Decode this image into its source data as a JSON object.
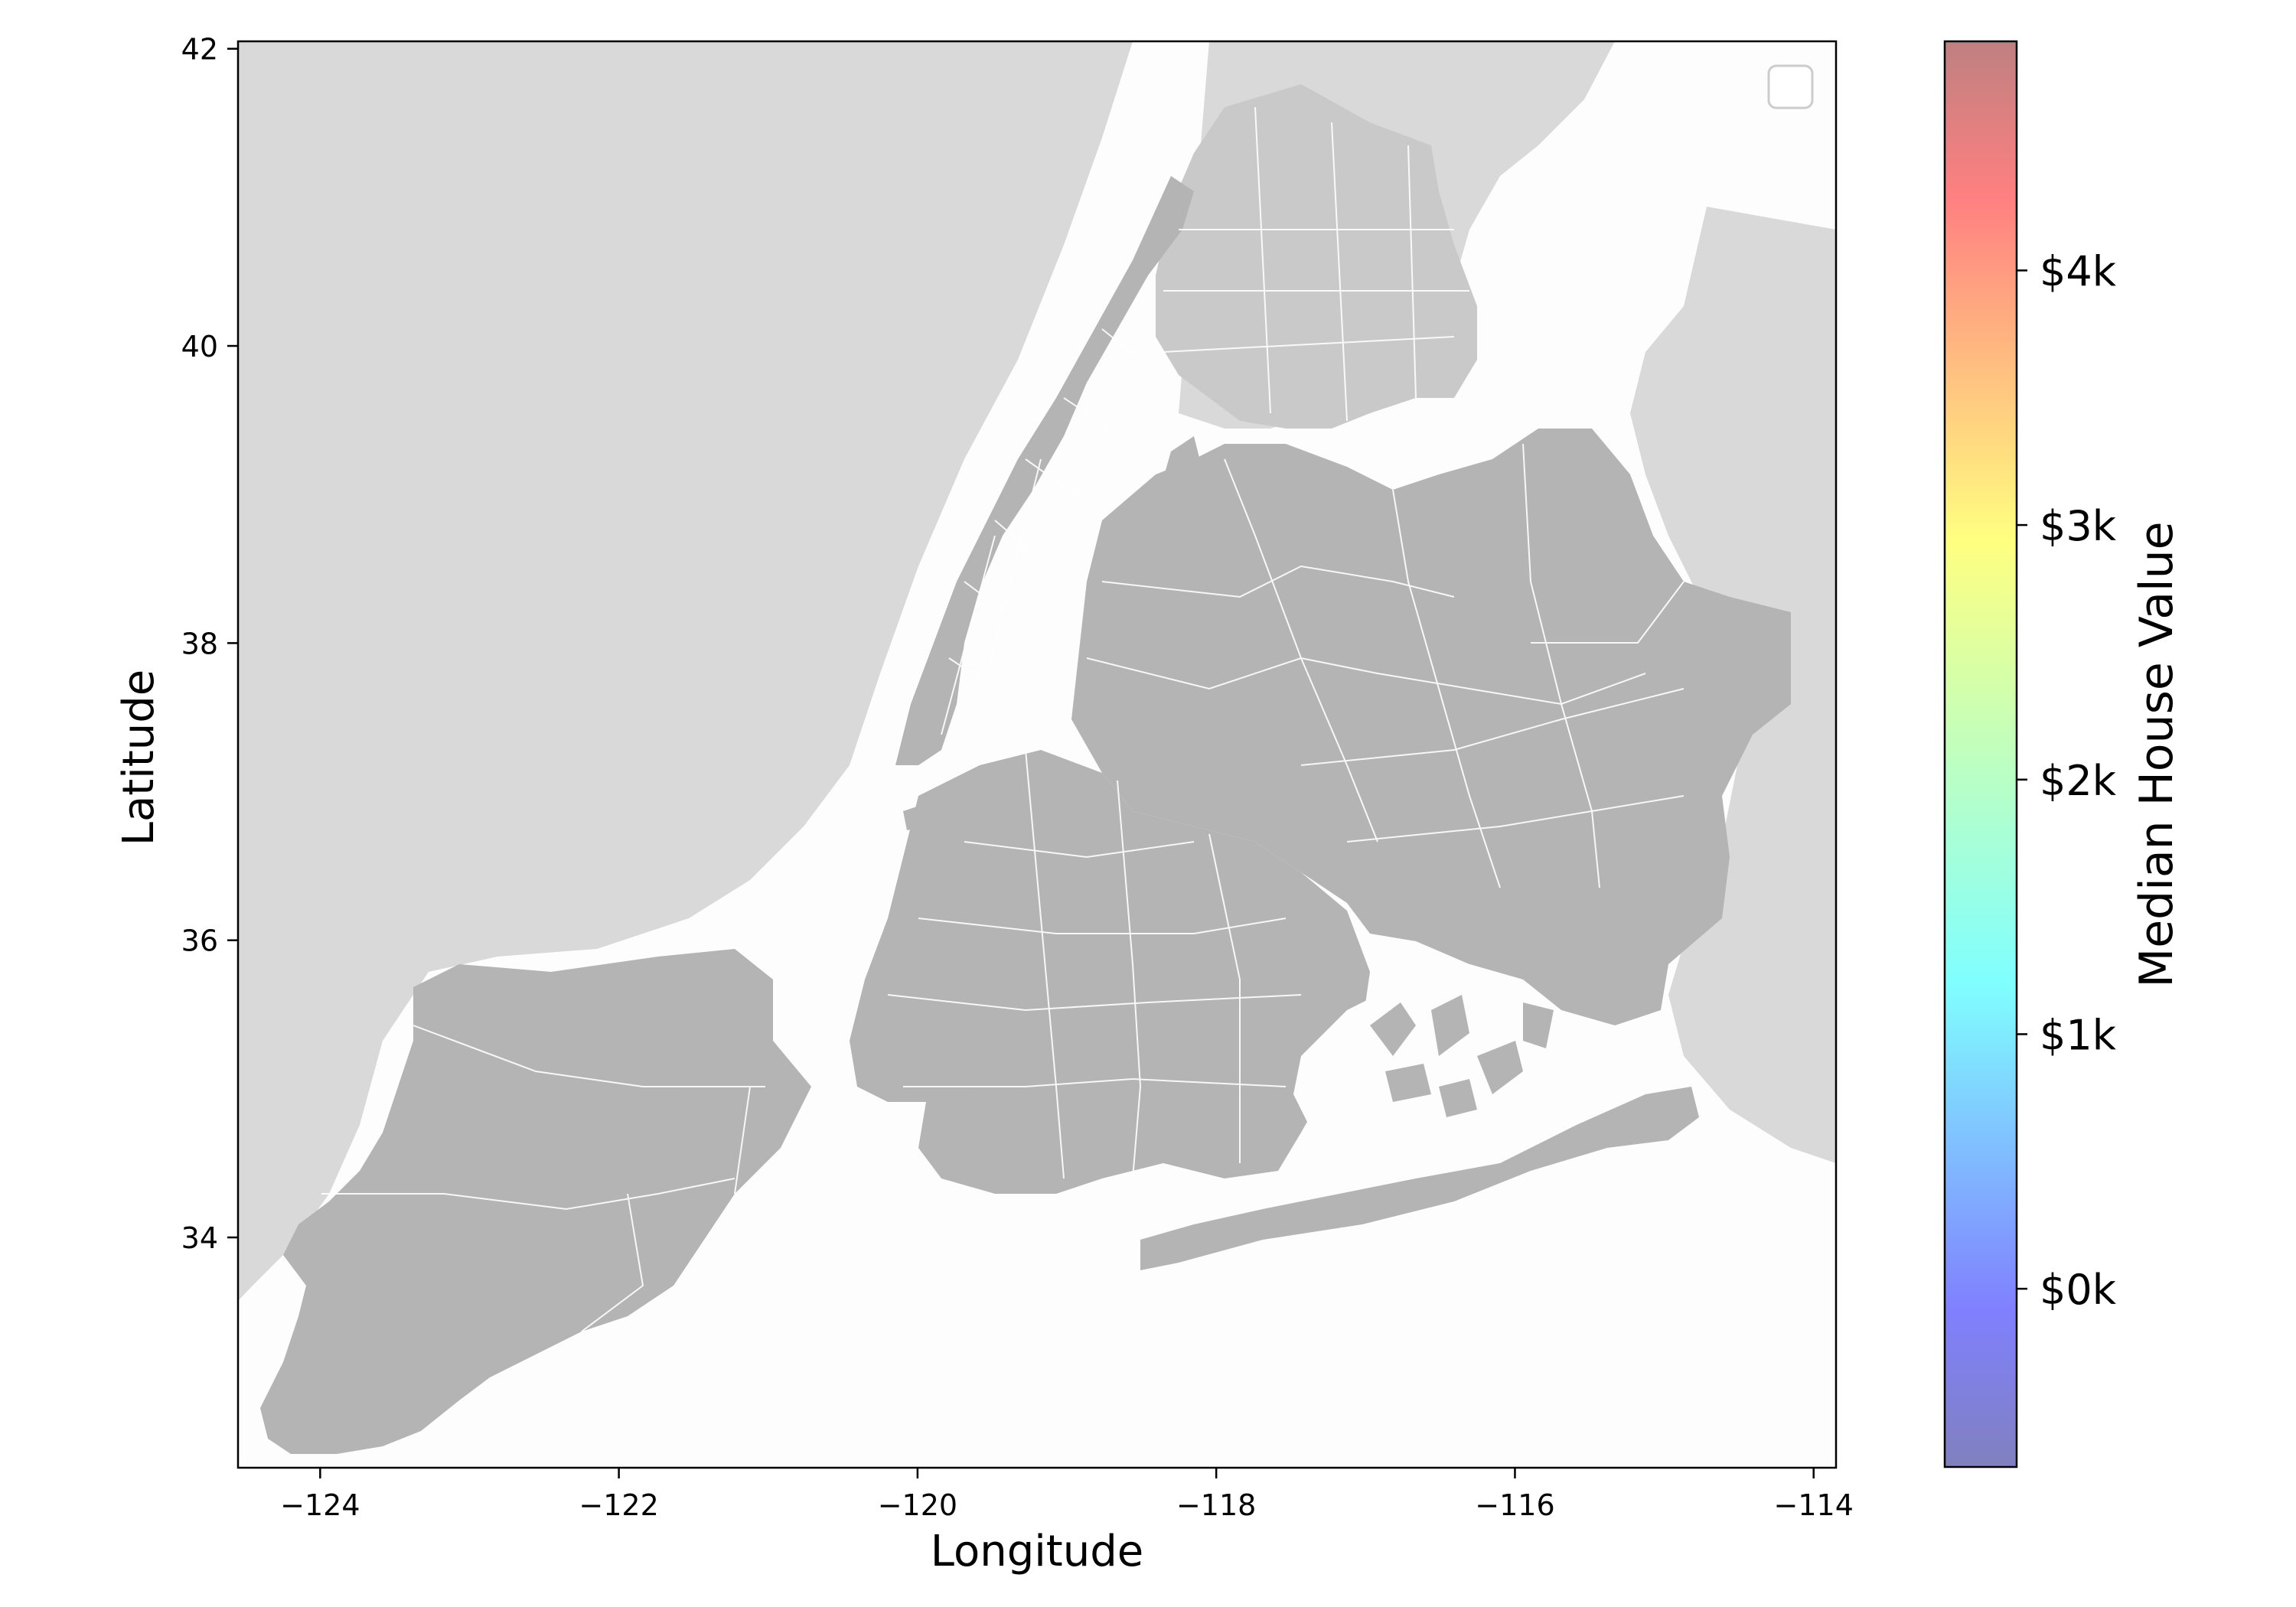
{
  "chart_data": {
    "type": "map",
    "xlabel": "Longitude",
    "ylabel": "Latitude",
    "xlim": [
      -124.55,
      -113.85
    ],
    "ylim": [
      32.45,
      42.05
    ],
    "x_ticks": [
      -124,
      -122,
      -120,
      -118,
      -116,
      -114
    ],
    "x_tick_labels": [
      "−124",
      "−122",
      "−120",
      "−118",
      "−116",
      "−114"
    ],
    "y_ticks": [
      34,
      36,
      38,
      40,
      42
    ],
    "y_tick_labels": [
      "34",
      "36",
      "38",
      "40",
      "42"
    ],
    "legend_placement": "top-right",
    "legend_entries": [],
    "colorbar": {
      "label": "Median House Value",
      "colormap": "jet",
      "alpha": 0.5,
      "range": [
        -700,
        4900
      ],
      "ticks": [
        0,
        1000,
        2000,
        3000,
        4000
      ],
      "tick_labels": [
        "$0k",
        "$1k",
        "$2k",
        "$3k",
        "$4k"
      ]
    },
    "colors": {
      "background_land": "#d9d9d9",
      "boroughs": "#b4b4b4",
      "water": "#ffffff",
      "boundaries": "#ffffff"
    }
  }
}
